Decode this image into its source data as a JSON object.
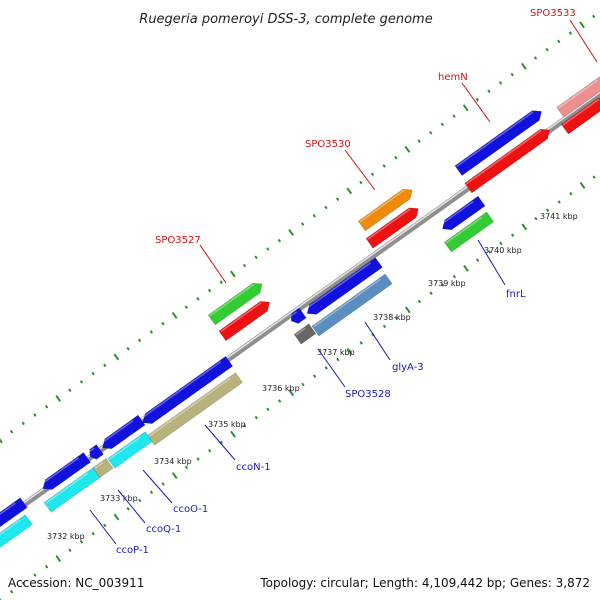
{
  "title": "Ruegeria pomeroyi DSS-3, complete genome",
  "footer": {
    "accession": "Accession: NC_003911",
    "summary": "Topology: circular; Length: 4,109,442 bp; Genes: 3,872"
  },
  "colors": {
    "backbone": "#8f8f8f",
    "backbone_highlight": "#e4e4e4",
    "tick": "#2f8f2f",
    "label_red": "#d11414",
    "label_blue": "#1a1ab8"
  },
  "kbp_labels": [
    "3732 kbp",
    "3733 kbp",
    "3734 kbp",
    "3735 kbp",
    "3736 kbp",
    "3737 kbp",
    "3738 kbp",
    "3739 kbp",
    "3740 kbp",
    "3741 kbp"
  ],
  "genes": [
    {
      "label": "SPO3533",
      "color": "#d11414"
    },
    {
      "label": "hemN",
      "color": "#d11414"
    },
    {
      "label": "SPO3530",
      "color": "#d11414"
    },
    {
      "label": "SPO3527",
      "color": "#d11414"
    },
    {
      "label": "fnrL",
      "color": "#1a1ab8"
    },
    {
      "label": "glyA-3",
      "color": "#1a1ab8"
    },
    {
      "label": "SPO3528",
      "color": "#1a1ab8"
    },
    {
      "label": "ccoN-1",
      "color": "#1a1ab8"
    },
    {
      "label": "ccoO-1",
      "color": "#1a1ab8"
    },
    {
      "label": "ccoQ-1",
      "color": "#1a1ab8"
    },
    {
      "label": "ccoP-1",
      "color": "#1a1ab8"
    }
  ],
  "feature_colors": {
    "cds_blue": "#1111dd",
    "gene_red": "#ee1111",
    "pink": "#ee8f8f",
    "orange": "#f08a0a",
    "green": "#33cc33",
    "steel": "#5a8ec0",
    "gray": "#666666",
    "khaki": "#b8b27c",
    "cyan": "#1ee8ee"
  }
}
